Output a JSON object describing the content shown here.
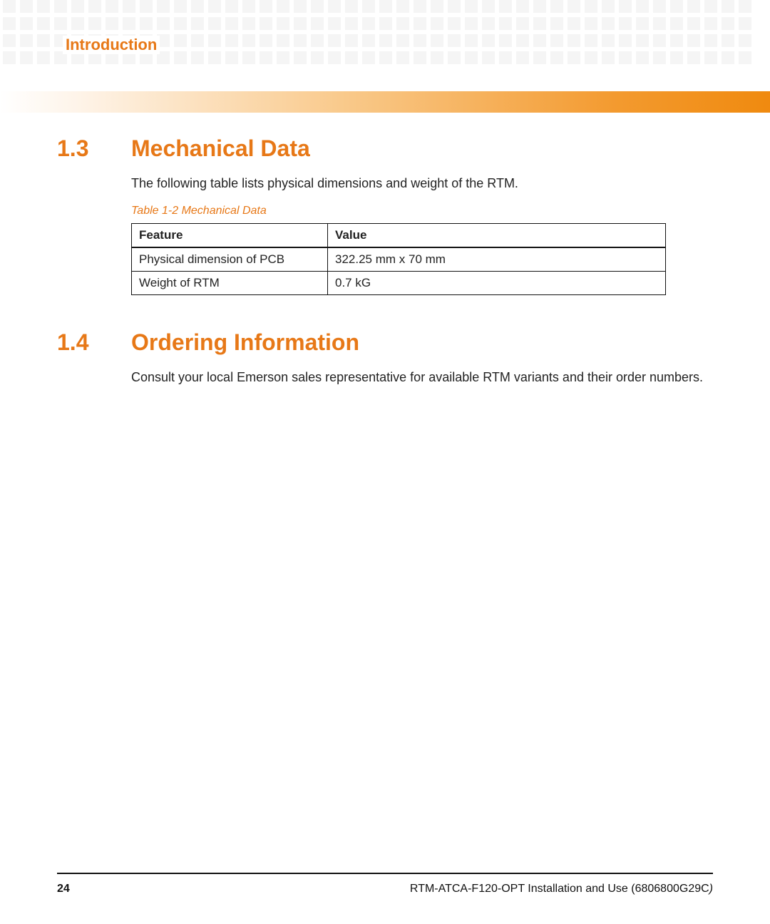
{
  "header": {
    "chapter_label": "Introduction",
    "decor": {
      "square_color": "#f5f5f5",
      "cols": 44,
      "rows": 4
    },
    "bar_gradient_from": "#ffffff",
    "bar_gradient_to": "#f08a0f"
  },
  "sections": {
    "s1": {
      "number": "1.3",
      "title": "Mechanical Data",
      "body": "The following table lists physical dimensions and weight of the RTM.",
      "table_caption": "Table 1-2 Mechanical Data",
      "table": {
        "columns": [
          "Feature",
          "Value"
        ],
        "rows": [
          [
            "Physical dimension of PCB",
            "322.25 mm x 70 mm"
          ],
          [
            "Weight of RTM",
            "0.7 kG"
          ]
        ]
      }
    },
    "s2": {
      "number": "1.4",
      "title": "Ordering Information",
      "body": "Consult your local Emerson sales representative for available RTM variants and their order numbers."
    }
  },
  "footer": {
    "page_number": "24",
    "doc_title": "RTM-ATCA-F120-OPT Installation and Use (6806800G29C",
    "closing_paren": ")"
  },
  "colors": {
    "accent": "#e77817",
    "text": "#222222",
    "rule": "#111111"
  }
}
